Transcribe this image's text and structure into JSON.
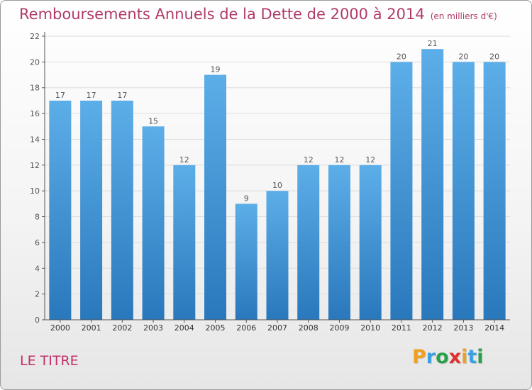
{
  "title": "Remboursements Annuels de la Dette de 2000 à 2014",
  "title_unit": "(en milliers d'€)",
  "commune": "LE TITRE",
  "logo": {
    "text": "Proxiti",
    "letters": [
      "P",
      "r",
      "o",
      "x",
      "i",
      "t",
      "i"
    ],
    "colors": [
      "#f0a020",
      "#3aa0e0",
      "#2aa04a",
      "#e03030",
      "#f0a020",
      "#3aa0e0",
      "#2aa04a"
    ]
  },
  "colors": {
    "bar_top": "#5caee8",
    "bar_bottom": "#2a78bc",
    "axis": "#555555",
    "grid": "#dddddd",
    "title": "#b03a6a"
  },
  "chart_data": {
    "type": "bar",
    "title": "Remboursements Annuels de la Dette de 2000 à 2014",
    "ylabel": "en milliers d'€",
    "xlabel": "",
    "categories": [
      "2000",
      "2001",
      "2002",
      "2003",
      "2004",
      "2005",
      "2006",
      "2007",
      "2008",
      "2009",
      "2010",
      "2011",
      "2012",
      "2013",
      "2014"
    ],
    "values": [
      17,
      17,
      17,
      15,
      12,
      19,
      9,
      10,
      12,
      12,
      12,
      20,
      21,
      20,
      20
    ],
    "ylim": [
      0,
      22
    ],
    "yticks": [
      0,
      2,
      4,
      6,
      8,
      10,
      12,
      14,
      16,
      18,
      20,
      22
    ],
    "grid": true
  }
}
